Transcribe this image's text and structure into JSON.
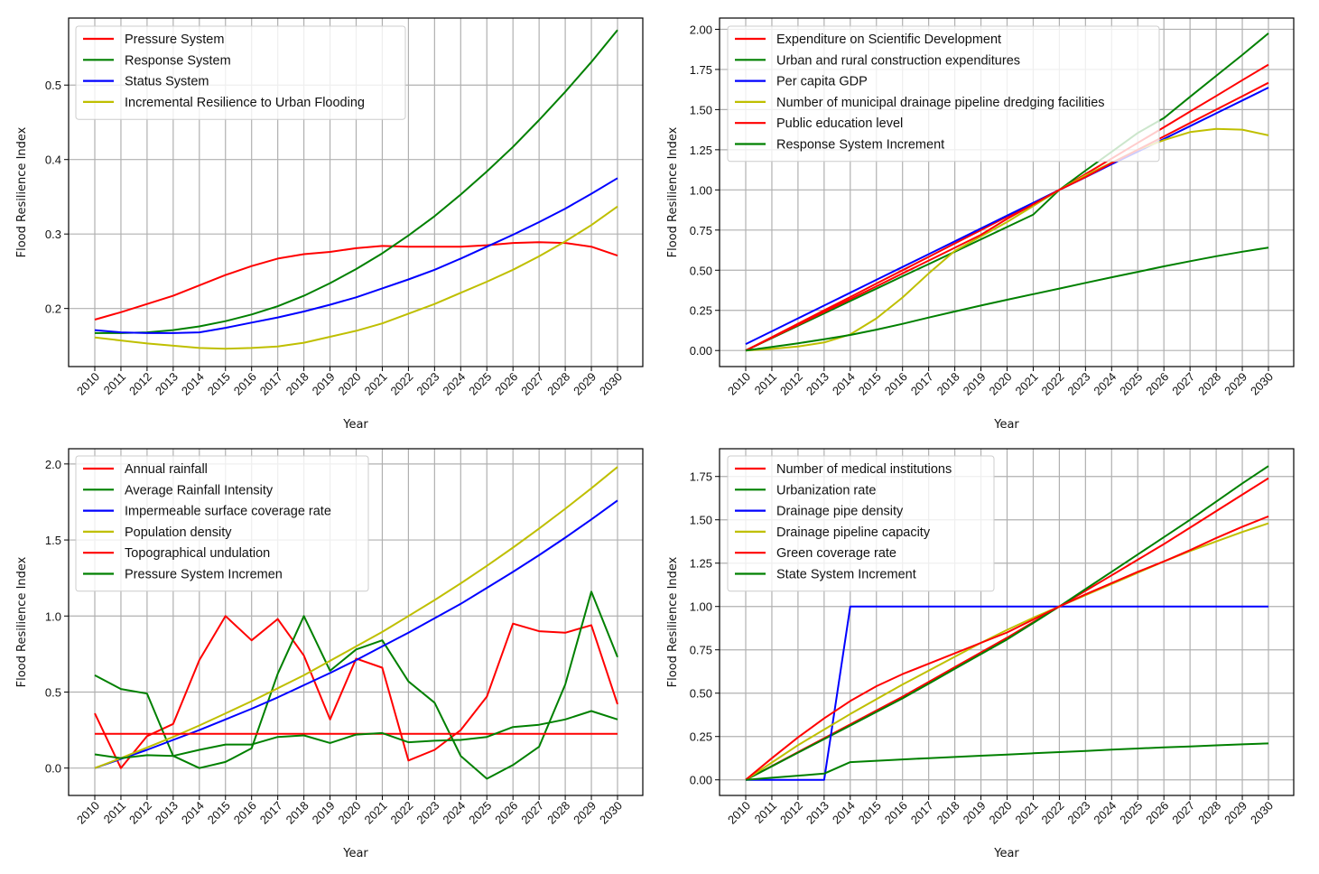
{
  "chart_data": [
    {
      "type": "line",
      "title": "",
      "xlabel": "Year",
      "ylabel": "Flood Resilience Index",
      "x": [
        2010,
        2011,
        2012,
        2013,
        2014,
        2015,
        2016,
        2017,
        2018,
        2019,
        2020,
        2021,
        2022,
        2023,
        2024,
        2025,
        2026,
        2027,
        2028,
        2029,
        2030
      ],
      "ylim": [
        0.122,
        0.59
      ],
      "yticks": [
        0.2,
        0.3,
        0.4,
        0.5
      ],
      "ytick_labels": [
        "0.2",
        "0.3",
        "0.4",
        "0.5"
      ],
      "grid": true,
      "legend": "top-left",
      "series": [
        {
          "name": "Pressure System",
          "color": "#ff0000",
          "values": [
            0.185,
            0.195,
            0.206,
            0.217,
            0.231,
            0.245,
            0.257,
            0.267,
            0.273,
            0.276,
            0.281,
            0.284,
            0.283,
            0.283,
            0.283,
            0.285,
            0.288,
            0.289,
            0.288,
            0.283,
            0.271
          ]
        },
        {
          "name": "Response System",
          "color": "#008000",
          "values": [
            0.167,
            0.167,
            0.168,
            0.171,
            0.176,
            0.183,
            0.192,
            0.203,
            0.217,
            0.234,
            0.253,
            0.274,
            0.298,
            0.324,
            0.353,
            0.384,
            0.417,
            0.453,
            0.491,
            0.531,
            0.574
          ]
        },
        {
          "name": "Status System",
          "color": "#0000ff",
          "values": [
            0.171,
            0.168,
            0.167,
            0.167,
            0.168,
            0.174,
            0.181,
            0.188,
            0.196,
            0.205,
            0.215,
            0.227,
            0.239,
            0.252,
            0.267,
            0.283,
            0.299,
            0.316,
            0.334,
            0.354,
            0.375
          ]
        },
        {
          "name": "Incremental Resilience to Urban Flooding",
          "color": "#bfbf00",
          "values": [
            0.161,
            0.157,
            0.153,
            0.15,
            0.147,
            0.146,
            0.147,
            0.149,
            0.154,
            0.162,
            0.17,
            0.18,
            0.193,
            0.206,
            0.221,
            0.236,
            0.252,
            0.27,
            0.29,
            0.312,
            0.337
          ]
        }
      ]
    },
    {
      "type": "line",
      "title": "",
      "xlabel": "Year",
      "ylabel": "Flood Resilience Index",
      "x": [
        2010,
        2011,
        2012,
        2013,
        2014,
        2015,
        2016,
        2017,
        2018,
        2019,
        2020,
        2021,
        2022,
        2023,
        2024,
        2025,
        2026,
        2027,
        2028,
        2029,
        2030
      ],
      "ylim": [
        -0.1,
        2.07
      ],
      "yticks": [
        0,
        0.25,
        0.5,
        0.75,
        1.0,
        1.25,
        1.5,
        1.75,
        2.0
      ],
      "ytick_labels": [
        "0.00",
        "0.25",
        "0.50",
        "0.75",
        "1.00",
        "1.25",
        "1.50",
        "1.75",
        "2.00"
      ],
      "grid": true,
      "legend": "top-left",
      "series": [
        {
          "name": "Expenditure on Scientific Development",
          "color": "#ff0000",
          "values": [
            0,
            0.083,
            0.167,
            0.25,
            0.333,
            0.417,
            0.5,
            0.583,
            0.667,
            0.75,
            0.833,
            0.917,
            1.0,
            1.098,
            1.195,
            1.293,
            1.39,
            1.488,
            1.585,
            1.683,
            1.78
          ]
        },
        {
          "name": "Urban and rural construction expenditures",
          "color": "#008000",
          "values": [
            0,
            0.077,
            0.154,
            0.231,
            0.308,
            0.385,
            0.462,
            0.538,
            0.615,
            0.692,
            0.769,
            0.846,
            1.0,
            1.12,
            1.237,
            1.355,
            1.447,
            1.58,
            1.71,
            1.84,
            1.975
          ]
        },
        {
          "name": "Per capita GDP",
          "color": "#0000ff",
          "values": [
            0.04,
            0.12,
            0.2,
            0.28,
            0.36,
            0.44,
            0.52,
            0.6,
            0.68,
            0.76,
            0.84,
            0.92,
            1.0,
            1.079,
            1.16,
            1.238,
            1.317,
            1.397,
            1.477,
            1.557,
            1.637
          ]
        },
        {
          "name": "Number of municipal drainage pipeline dredging facilities",
          "color": "#bfbf00",
          "values": [
            0,
            0.01,
            0.025,
            0.05,
            0.1,
            0.2,
            0.33,
            0.48,
            0.62,
            0.71,
            0.8,
            0.9,
            1.0,
            1.09,
            1.17,
            1.25,
            1.31,
            1.36,
            1.38,
            1.375,
            1.34
          ]
        },
        {
          "name": "Public education level",
          "color": "#ff0000",
          "values": [
            0,
            0.08,
            0.16,
            0.24,
            0.32,
            0.4,
            0.48,
            0.56,
            0.64,
            0.72,
            0.82,
            0.91,
            1.0,
            1.08,
            1.167,
            1.25,
            1.333,
            1.417,
            1.5,
            1.583,
            1.667
          ]
        },
        {
          "name": "Response System Increment",
          "color": "#008000",
          "values": [
            0,
            0.022,
            0.045,
            0.07,
            0.097,
            0.13,
            0.166,
            0.205,
            0.243,
            0.28,
            0.316,
            0.351,
            0.386,
            0.421,
            0.456,
            0.49,
            0.524,
            0.556,
            0.587,
            0.615,
            0.641
          ]
        }
      ]
    },
    {
      "type": "line",
      "title": "",
      "xlabel": "Year",
      "ylabel": "Flood Resilience Index",
      "x": [
        2010,
        2011,
        2012,
        2013,
        2014,
        2015,
        2016,
        2017,
        2018,
        2019,
        2020,
        2021,
        2022,
        2023,
        2024,
        2025,
        2026,
        2027,
        2028,
        2029,
        2030
      ],
      "ylim": [
        -0.18,
        2.1
      ],
      "yticks": [
        0,
        0.5,
        1.0,
        1.5,
        2.0
      ],
      "ytick_labels": [
        "0.0",
        "0.5",
        "1.0",
        "1.5",
        "2.0"
      ],
      "grid": true,
      "legend": "top-left",
      "series": [
        {
          "name": "Annual rainfall",
          "color": "#ff0000",
          "values": [
            0.36,
            0.0,
            0.21,
            0.29,
            0.71,
            1.0,
            0.84,
            0.98,
            0.74,
            0.32,
            0.72,
            0.66,
            0.05,
            0.12,
            0.25,
            0.47,
            0.95,
            0.9,
            0.89,
            0.94,
            0.42
          ]
        },
        {
          "name": "Average Rainfall Intensity",
          "color": "#008000",
          "values": [
            0.61,
            0.52,
            0.49,
            0.08,
            0.0,
            0.04,
            0.13,
            0.62,
            1.0,
            0.64,
            0.78,
            0.84,
            0.57,
            0.43,
            0.08,
            -0.07,
            0.02,
            0.14,
            0.55,
            1.16,
            0.73
          ]
        },
        {
          "name": "Impermeable surface coverage rate",
          "color": "#0000ff",
          "values": [
            0,
            0.06,
            0.12,
            0.185,
            0.25,
            0.32,
            0.39,
            0.465,
            0.545,
            0.625,
            0.71,
            0.8,
            0.89,
            0.985,
            1.08,
            1.185,
            1.29,
            1.4,
            1.515,
            1.635,
            1.76
          ]
        },
        {
          "name": "Population density",
          "color": "#bfbf00",
          "values": [
            0,
            0.065,
            0.135,
            0.205,
            0.28,
            0.36,
            0.44,
            0.525,
            0.61,
            0.705,
            0.8,
            0.895,
            1.0,
            1.105,
            1.215,
            1.33,
            1.45,
            1.575,
            1.705,
            1.84,
            1.98
          ]
        },
        {
          "name": "Topographical undulation",
          "color": "#ff0000",
          "values": [
            0.225,
            0.225,
            0.225,
            0.225,
            0.225,
            0.225,
            0.225,
            0.225,
            0.225,
            0.225,
            0.225,
            0.225,
            0.225,
            0.225,
            0.225,
            0.225,
            0.225,
            0.225,
            0.225,
            0.225,
            0.225
          ]
        },
        {
          "name": "Pressure System Incremen",
          "color": "#008000",
          "values": [
            0.09,
            0.065,
            0.085,
            0.08,
            0.12,
            0.155,
            0.155,
            0.205,
            0.215,
            0.165,
            0.22,
            0.23,
            0.17,
            0.18,
            0.185,
            0.205,
            0.27,
            0.285,
            0.32,
            0.375,
            0.32
          ]
        }
      ]
    },
    {
      "type": "line",
      "title": "",
      "xlabel": "Year",
      "ylabel": "Flood Resilience Index",
      "x": [
        2010,
        2011,
        2012,
        2013,
        2014,
        2015,
        2016,
        2017,
        2018,
        2019,
        2020,
        2021,
        2022,
        2023,
        2024,
        2025,
        2026,
        2027,
        2028,
        2029,
        2030
      ],
      "ylim": [
        -0.09,
        1.91
      ],
      "yticks": [
        0,
        0.25,
        0.5,
        0.75,
        1.0,
        1.25,
        1.5,
        1.75
      ],
      "ytick_labels": [
        "0.00",
        "0.25",
        "0.50",
        "0.75",
        "1.00",
        "1.25",
        "1.50",
        "1.75"
      ],
      "grid": true,
      "legend": "top-left",
      "series": [
        {
          "name": "Number of medical institutions",
          "color": "#ff0000",
          "values": [
            0,
            0.08,
            0.16,
            0.24,
            0.32,
            0.4,
            0.48,
            0.565,
            0.65,
            0.735,
            0.82,
            0.91,
            1.0,
            1.09,
            1.18,
            1.27,
            1.36,
            1.455,
            1.55,
            1.645,
            1.74
          ]
        },
        {
          "name": "Urbanization rate",
          "color": "#008000",
          "values": [
            0,
            0.078,
            0.157,
            0.235,
            0.313,
            0.392,
            0.47,
            0.555,
            0.64,
            0.725,
            0.81,
            0.905,
            1.0,
            1.1,
            1.2,
            1.3,
            1.4,
            1.5,
            1.605,
            1.71,
            1.81
          ]
        },
        {
          "name": "Drainage pipe density",
          "color": "#0000ff",
          "values": [
            0,
            0,
            0,
            0,
            1.0,
            1.0,
            1.0,
            1.0,
            1.0,
            1.0,
            1.0,
            1.0,
            1.0,
            1.0,
            1.0,
            1.0,
            1.0,
            1.0,
            1.0,
            1.0,
            1.0
          ]
        },
        {
          "name": "Drainage pipeline capacity",
          "color": "#bfbf00",
          "values": [
            0,
            0.1,
            0.2,
            0.29,
            0.38,
            0.465,
            0.55,
            0.63,
            0.71,
            0.79,
            0.865,
            0.935,
            1.0,
            1.065,
            1.13,
            1.195,
            1.26,
            1.32,
            1.375,
            1.43,
            1.48
          ]
        },
        {
          "name": "Green coverage rate",
          "color": "#ff0000",
          "values": [
            0,
            0.125,
            0.245,
            0.355,
            0.455,
            0.54,
            0.61,
            0.67,
            0.73,
            0.79,
            0.85,
            0.925,
            1.0,
            1.07,
            1.135,
            1.2,
            1.26,
            1.325,
            1.395,
            1.46,
            1.52
          ]
        },
        {
          "name": "State System Increment",
          "color": "#008000",
          "values": [
            0,
            0.012,
            0.024,
            0.036,
            0.102,
            0.11,
            0.118,
            0.125,
            0.132,
            0.139,
            0.146,
            0.153,
            0.16,
            0.167,
            0.174,
            0.181,
            0.187,
            0.193,
            0.199,
            0.205,
            0.21
          ]
        }
      ]
    }
  ]
}
